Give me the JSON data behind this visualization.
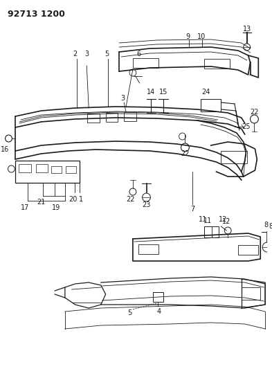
{
  "title": "92713 1200",
  "bg_color": "#ffffff",
  "line_color": "#1a1a1a",
  "title_fontsize": 9,
  "label_fontsize": 7,
  "fig_width": 3.93,
  "fig_height": 5.33,
  "dpi": 100
}
